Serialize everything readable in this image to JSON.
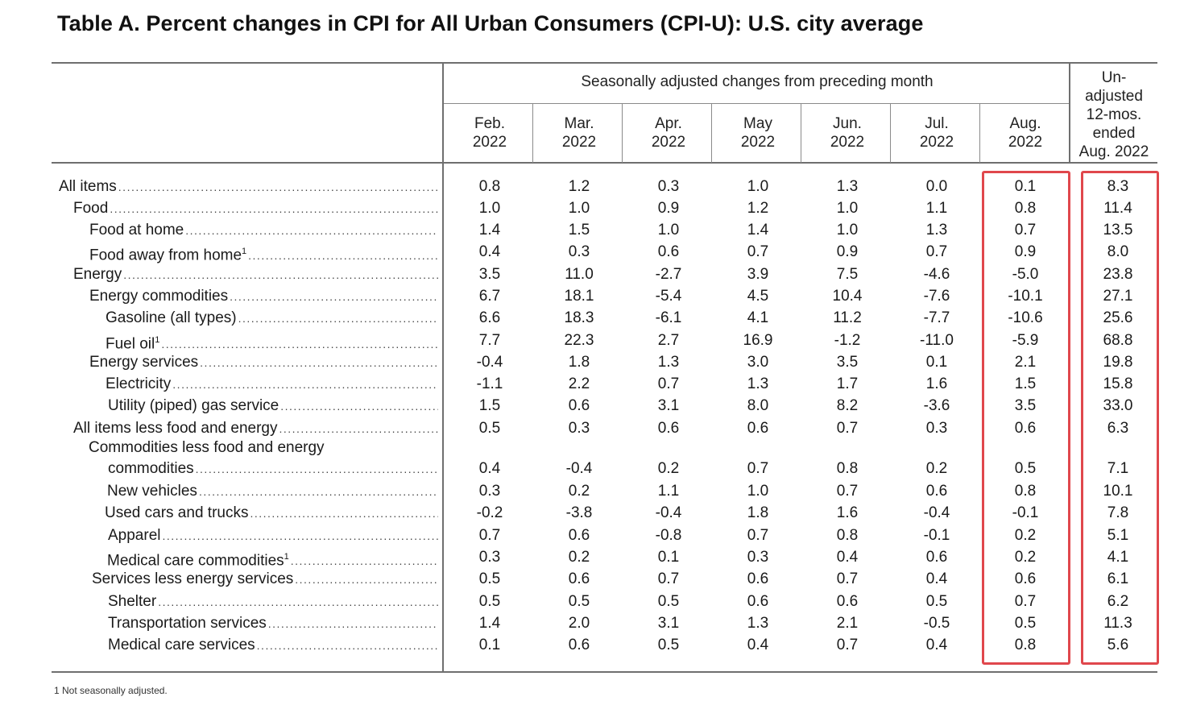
{
  "title": "Table A. Percent changes in CPI for All Urban Consumers (CPI-U): U.S. city average",
  "header": {
    "seasonal_span": "Seasonally adjusted changes from preceding month",
    "months": [
      "Feb.",
      "Mar.",
      "Apr.",
      "May",
      "Jun.",
      "Jul.",
      "Aug."
    ],
    "years": [
      "2022",
      "2022",
      "2022",
      "2022",
      "2022",
      "2022",
      "2022"
    ],
    "unadjusted_lines": [
      "Un-",
      "adjusted",
      "12-mos.",
      "ended",
      "Aug. 2022"
    ]
  },
  "rows": [
    {
      "label": "All items",
      "sup": "",
      "values": [
        "0.8",
        "1.2",
        "0.3",
        "1.0",
        "1.3",
        "0.0",
        "0.1",
        "8.3"
      ]
    },
    {
      "label": "Food",
      "sup": "",
      "values": [
        "1.0",
        "1.0",
        "0.9",
        "1.2",
        "1.0",
        "1.1",
        "0.8",
        "11.4"
      ]
    },
    {
      "label": "Food at home",
      "sup": "",
      "values": [
        "1.4",
        "1.5",
        "1.0",
        "1.4",
        "1.0",
        "1.3",
        "0.7",
        "13.5"
      ]
    },
    {
      "label": "Food away from home",
      "sup": "1",
      "values": [
        "0.4",
        "0.3",
        "0.6",
        "0.7",
        "0.9",
        "0.7",
        "0.9",
        "8.0"
      ]
    },
    {
      "label": "Energy",
      "sup": "",
      "values": [
        "3.5",
        "11.0",
        "-2.7",
        "3.9",
        "7.5",
        "-4.6",
        "-5.0",
        "23.8"
      ]
    },
    {
      "label": "Energy commodities",
      "sup": "",
      "values": [
        "6.7",
        "18.1",
        "-5.4",
        "4.5",
        "10.4",
        "-7.6",
        "-10.1",
        "27.1"
      ]
    },
    {
      "label": "Gasoline (all types)",
      "sup": "",
      "values": [
        "6.6",
        "18.3",
        "-6.1",
        "4.1",
        "11.2",
        "-7.7",
        "-10.6",
        "25.6"
      ]
    },
    {
      "label": "Fuel oil",
      "sup": "1",
      "values": [
        "7.7",
        "22.3",
        "2.7",
        "16.9",
        "-1.2",
        "-11.0",
        "-5.9",
        "68.8"
      ]
    },
    {
      "label": "Energy services",
      "sup": "",
      "values": [
        "-0.4",
        "1.8",
        "1.3",
        "3.0",
        "3.5",
        "0.1",
        "2.1",
        "19.8"
      ]
    },
    {
      "label": "Electricity",
      "sup": "",
      "values": [
        "-1.1",
        "2.2",
        "0.7",
        "1.3",
        "1.7",
        "1.6",
        "1.5",
        "15.8"
      ]
    },
    {
      "label": "Utility (piped) gas service",
      "sup": "",
      "values": [
        "1.5",
        "0.6",
        "3.1",
        "8.0",
        "8.2",
        "-3.6",
        "3.5",
        "33.0"
      ]
    },
    {
      "label": "All items less food and energy",
      "sup": "",
      "values": [
        "0.5",
        "0.3",
        "0.6",
        "0.6",
        "0.7",
        "0.3",
        "0.6",
        "6.3"
      ]
    },
    {
      "label": "commodities",
      "label_line1": "Commodities less food and energy",
      "sup": "",
      "values": [
        "0.4",
        "-0.4",
        "0.2",
        "0.7",
        "0.8",
        "0.2",
        "0.5",
        "7.1"
      ]
    },
    {
      "label": "New vehicles",
      "sup": "",
      "values": [
        "0.3",
        "0.2",
        "1.1",
        "1.0",
        "0.7",
        "0.6",
        "0.8",
        "10.1"
      ]
    },
    {
      "label": "Used cars and trucks",
      "sup": "",
      "values": [
        "-0.2",
        "-3.8",
        "-0.4",
        "1.8",
        "1.6",
        "-0.4",
        "-0.1",
        "7.8"
      ]
    },
    {
      "label": "Apparel",
      "sup": "",
      "values": [
        "0.7",
        "0.6",
        "-0.8",
        "0.7",
        "0.8",
        "-0.1",
        "0.2",
        "5.1"
      ]
    },
    {
      "label": "Medical care commodities",
      "sup": "1",
      "values": [
        "0.3",
        "0.2",
        "0.1",
        "0.3",
        "0.4",
        "0.6",
        "0.2",
        "4.1"
      ]
    },
    {
      "label": "Services less energy services",
      "sup": "",
      "values": [
        "0.5",
        "0.6",
        "0.7",
        "0.6",
        "0.7",
        "0.4",
        "0.6",
        "6.1"
      ]
    },
    {
      "label": "Shelter",
      "sup": "",
      "values": [
        "0.5",
        "0.5",
        "0.5",
        "0.6",
        "0.6",
        "0.5",
        "0.7",
        "6.2"
      ]
    },
    {
      "label": "Transportation services",
      "sup": "",
      "values": [
        "1.4",
        "2.0",
        "3.1",
        "1.3",
        "2.1",
        "-0.5",
        "0.5",
        "11.3"
      ]
    },
    {
      "label": "Medical care services",
      "sup": "",
      "values": [
        "0.1",
        "0.6",
        "0.5",
        "0.4",
        "0.7",
        "0.4",
        "0.8",
        "5.6"
      ]
    }
  ],
  "footnote": "1  Not seasonally adjusted.",
  "highlight_color": "#e0474c"
}
